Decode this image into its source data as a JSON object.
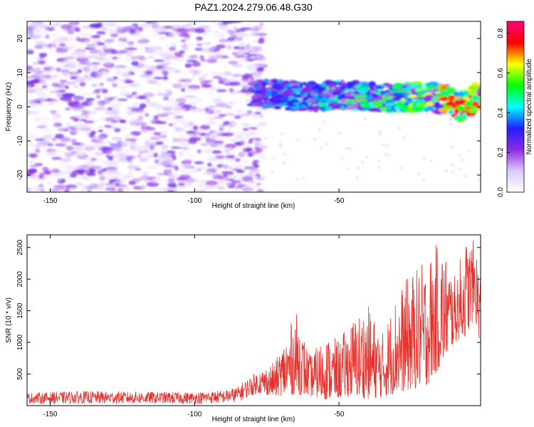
{
  "title": "PAZ1.2024.279.06.48.G30",
  "chart_data": [
    {
      "type": "heatmap",
      "xlabel": "Height of straight line (km)",
      "ylabel": "Frequency (Hz)",
      "xlim": [
        -158,
        -1
      ],
      "ylim": [
        -25,
        25
      ],
      "x_ticks": [
        -150,
        -100,
        -50
      ],
      "y_ticks": [
        -20,
        -10,
        0,
        10,
        20
      ],
      "grid": false,
      "colorbar": {
        "label": "Normalized spectral amplitude",
        "range": [
          0.0,
          0.86
        ],
        "ticks": [
          "0.0",
          "0.2",
          "0.4",
          "0.6",
          "0.8"
        ],
        "colormap": "rainbow",
        "colors": [
          "#ffffff",
          "#dcc8ff",
          "#8a2be2",
          "#2020ff",
          "#00ffff",
          "#00ff00",
          "#ffff00",
          "#ff0000",
          "#ff0080"
        ]
      },
      "ridge": {
        "start_x": -80,
        "points": [
          [
            -80,
            4
          ],
          [
            -70,
            3.5
          ],
          [
            -60,
            3
          ],
          [
            -50,
            3.5
          ],
          [
            -40,
            3
          ],
          [
            -30,
            2.5
          ],
          [
            -20,
            3
          ],
          [
            -12,
            2
          ],
          [
            -8,
            0
          ],
          [
            -4,
            2
          ],
          [
            -1,
            3
          ]
        ],
        "peak_amplitude": 0.86,
        "peak_x": -8
      },
      "noise_region_x": [
        -158,
        -80
      ]
    },
    {
      "type": "line",
      "xlabel": "Height of straight line (km)",
      "ylabel": "SNR (10 * v/v)",
      "xlim": [
        -158,
        -1
      ],
      "ylim": [
        0,
        2700
      ],
      "x_ticks": [
        -150,
        -100,
        -50
      ],
      "y_ticks": [
        500,
        1000,
        1500,
        2000,
        2500
      ],
      "grid": false,
      "series": [
        {
          "color": "#e8312c",
          "envelope_x": [
            -158,
            -140,
            -120,
            -100,
            -90,
            -85,
            -78,
            -72,
            -65,
            -60,
            -55,
            -50,
            -45,
            -40,
            -35,
            -30,
            -25,
            -20,
            -15,
            -10,
            -6,
            -3,
            -1
          ],
          "envelope_max": [
            200,
            230,
            220,
            210,
            240,
            300,
            560,
            700,
            1500,
            800,
            1100,
            1050,
            1400,
            1600,
            1150,
            1800,
            2100,
            2300,
            2650,
            2050,
            2650,
            2600,
            2200
          ],
          "envelope_min": [
            30,
            30,
            30,
            30,
            40,
            60,
            200,
            150,
            180,
            150,
            100,
            120,
            150,
            100,
            130,
            200,
            250,
            300,
            600,
            1000,
            1100,
            1400,
            900
          ]
        }
      ]
    }
  ]
}
